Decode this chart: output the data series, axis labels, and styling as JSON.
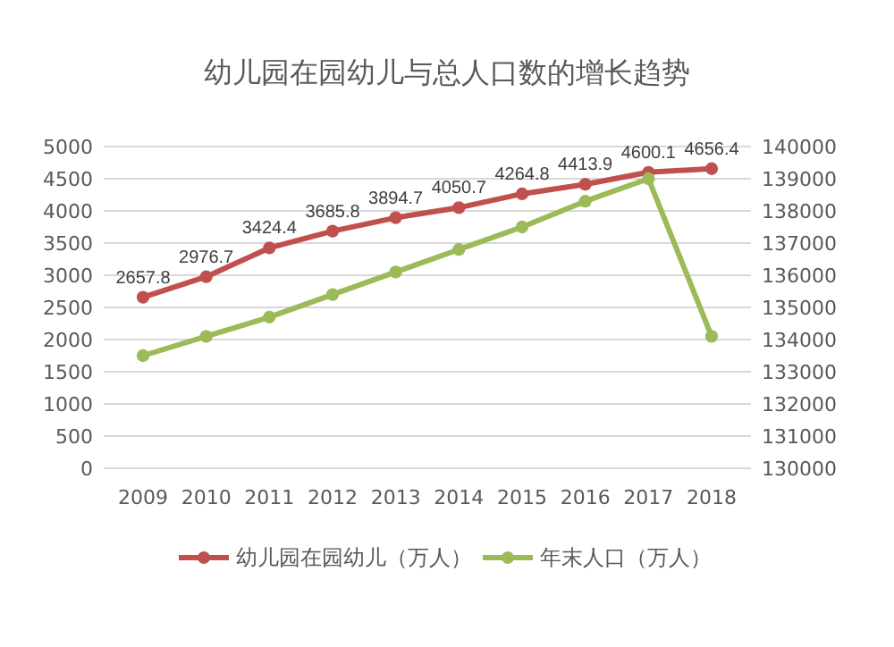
{
  "chart_data": {
    "type": "line",
    "title": "幼儿园在园幼儿与总人口数的增长趋势",
    "categories": [
      "2009",
      "2010",
      "2011",
      "2012",
      "2013",
      "2014",
      "2015",
      "2016",
      "2017",
      "2018"
    ],
    "series": [
      {
        "name": "幼儿园在园幼儿（万人）",
        "color": "#c0504d",
        "values": [
          2657.8,
          2976.7,
          3424.4,
          3685.8,
          3894.7,
          4050.7,
          4264.8,
          4413.9,
          4600.1,
          4656.4
        ],
        "value_labels": [
          "2657.8",
          "2976.7",
          "3424.4",
          "3685.8",
          "3894.7",
          "4050.7",
          "4264.8",
          "4413.9",
          "4600.1",
          "4656.4"
        ]
      },
      {
        "name": "年末人口（万人）",
        "color": "#9bbb59",
        "axis": "y2",
        "values": [
          133500,
          134100,
          134700,
          135400,
          136100,
          136800,
          137500,
          138300,
          139000,
          134100
        ]
      }
    ],
    "ylim": [
      0,
      5000
    ],
    "yticks": [
      0,
      500,
      1000,
      1500,
      2000,
      2500,
      3000,
      3500,
      4000,
      4500,
      5000
    ],
    "y2lim": [
      130000,
      140000
    ],
    "y2ticks": [
      130000,
      131000,
      132000,
      133000,
      134000,
      135000,
      136000,
      137000,
      138000,
      139000,
      140000
    ],
    "grid": "y",
    "legend": "bottom",
    "marker": "circle",
    "line_style": "solid"
  }
}
